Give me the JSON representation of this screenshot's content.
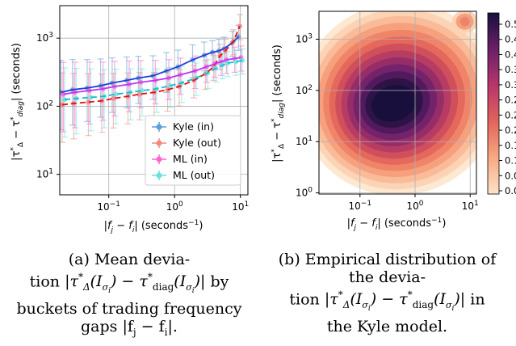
{
  "chart_data": [
    {
      "type": "line",
      "ylabel": "|τ*_Δ − τ*_diag| (seconds)",
      "xlabel": "|f_j − f_i| (seconds⁻¹)",
      "xscale": "log",
      "yscale": "log",
      "xlim": [
        0.018,
        13
      ],
      "ylim": [
        5,
        3000
      ],
      "grid": true,
      "legend_position": "lower-right",
      "xticks": [
        "10⁻¹",
        "10⁰",
        "10¹"
      ],
      "yticks": [
        "10¹",
        "10²",
        "10³"
      ],
      "x": [
        0.02,
        0.03,
        0.05,
        0.08,
        0.12,
        0.2,
        0.3,
        0.5,
        0.8,
        1.2,
        2,
        3,
        4,
        5,
        6,
        8,
        10
      ],
      "series": [
        {
          "name": "Kyle (in)",
          "color": "#5aa0dc",
          "values": [
            160,
            175,
            185,
            200,
            220,
            240,
            260,
            280,
            330,
            380,
            480,
            560,
            620,
            650,
            700,
            850,
            1050
          ]
        },
        {
          "name": "Kyle (out)",
          "color": "#f08a7e",
          "values": [
            105,
            110,
            115,
            120,
            130,
            140,
            150,
            160,
            175,
            195,
            240,
            300,
            380,
            550,
            650,
            900,
            1500
          ]
        },
        {
          "name": "ML (in)",
          "color": "#ff66cc",
          "values": [
            150,
            160,
            170,
            180,
            195,
            210,
            225,
            240,
            260,
            290,
            330,
            380,
            420,
            450,
            480,
            500,
            520
          ]
        },
        {
          "name": "ML (out)",
          "color": "#6ee0e0",
          "values": [
            125,
            130,
            135,
            140,
            150,
            160,
            170,
            180,
            200,
            220,
            260,
            310,
            360,
            400,
            430,
            450,
            470
          ]
        }
      ]
    },
    {
      "type": "heatmap",
      "ylabel": "|τ*_Δ − τ*_diag| (seconds)",
      "xlabel": "|f_j − f_i| (seconds⁻¹)",
      "xscale": "log",
      "yscale": "log",
      "xlim": [
        0.018,
        13
      ],
      "ylim": [
        0.95,
        3500
      ],
      "grid": true,
      "xticks": [
        "10⁻¹",
        "10⁰",
        "10¹"
      ],
      "yticks": [
        "10⁰",
        "10¹",
        "10²",
        "10³"
      ],
      "colorbar_ticks": [
        "0.50",
        "0.45",
        "0.40",
        "0.36",
        "0.33",
        "0.28",
        "0.24",
        "0.21",
        "0.17",
        "0.12",
        "0.08",
        "0.03"
      ],
      "density_peak": {
        "x": 0.4,
        "y": 55
      }
    }
  ],
  "captions": {
    "a": {
      "label": "(a) Mean devia-",
      "line2a": "tion ",
      "line2b": " by",
      "line3": "buckets of trading frequency",
      "line4": "gaps |f",
      "line4b": " − f",
      "line4c": "|."
    },
    "b": {
      "label": "(b) Empirical distribution of",
      "line2": "the devia-",
      "line3a": "tion ",
      "line3b": " in",
      "line4": "the Kyle model."
    }
  },
  "legend": [
    "Kyle (in)",
    "Kyle (out)",
    "ML (in)",
    "ML (out)"
  ]
}
